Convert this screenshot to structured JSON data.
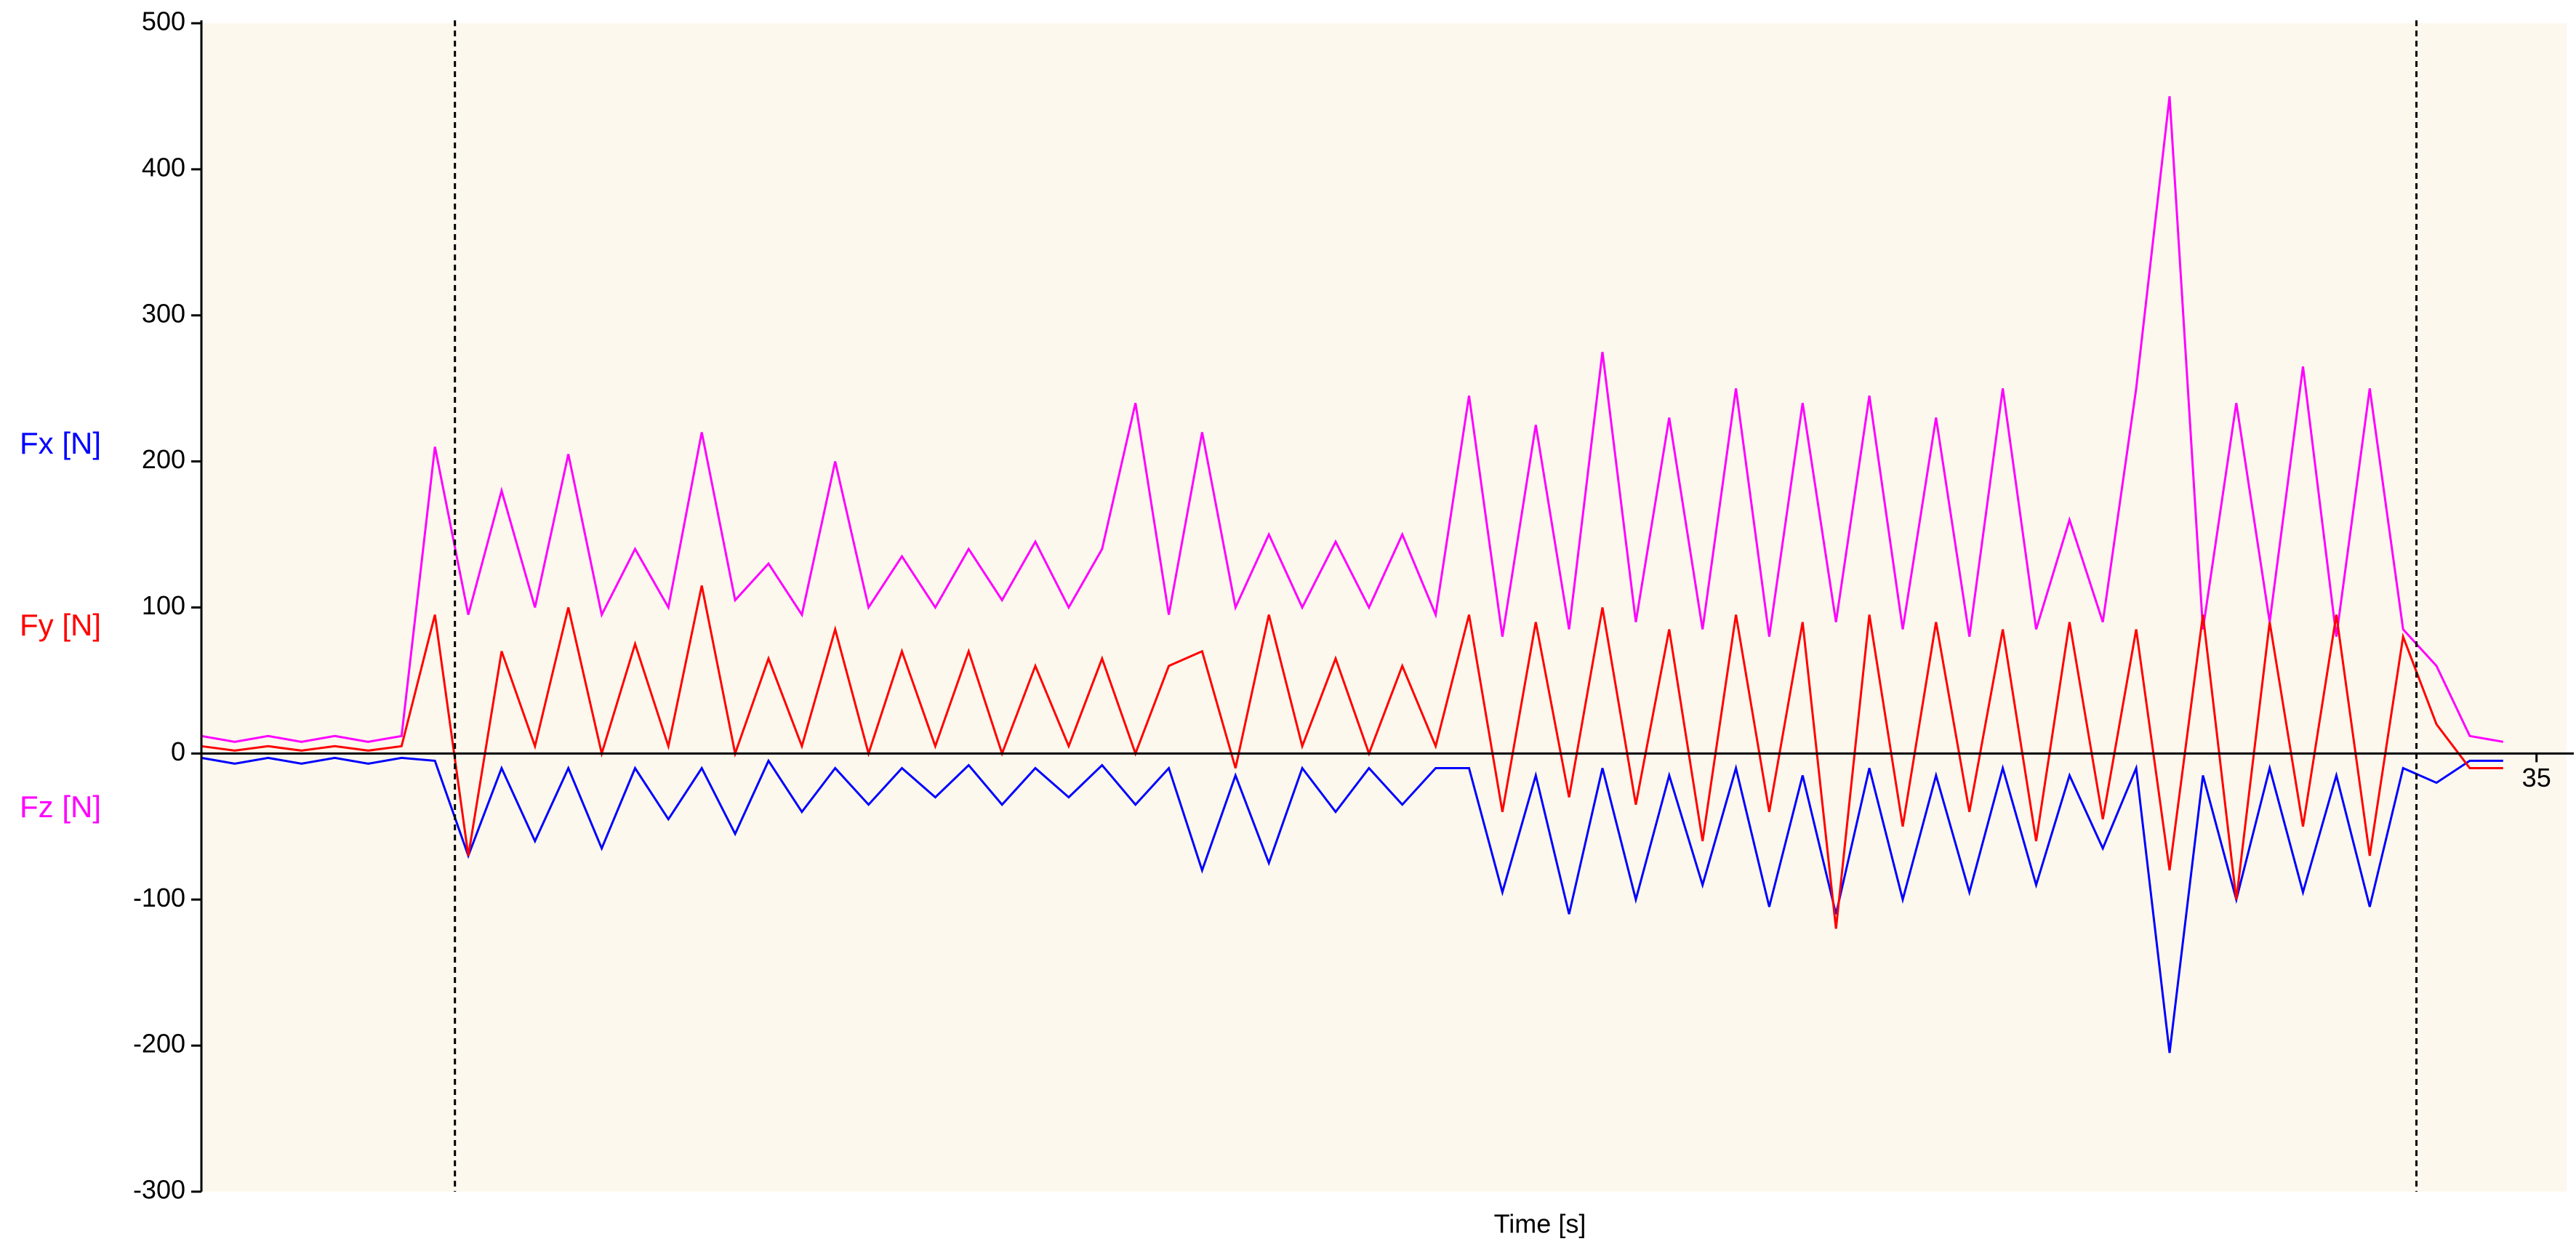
{
  "chart_data": {
    "type": "line",
    "x_label": "Time [s]",
    "x": [
      0,
      0.5,
      1,
      1.5,
      2,
      2.5,
      3,
      3.5,
      4,
      4.5,
      5,
      5.5,
      6,
      6.5,
      7,
      7.5,
      8,
      8.5,
      9,
      9.5,
      10,
      10.5,
      11,
      11.5,
      12,
      12.5,
      13,
      13.5,
      14,
      14.5,
      15,
      15.5,
      16,
      16.5,
      17,
      17.5,
      18,
      18.5,
      19,
      19.5,
      20,
      20.5,
      21,
      21.5,
      22,
      22.5,
      23,
      23.5,
      24,
      24.5,
      25,
      25.5,
      26,
      26.5,
      27,
      27.5,
      28,
      28.5,
      29,
      29.5,
      30,
      30.5,
      31,
      31.5,
      32,
      32.5,
      33,
      33.5,
      34,
      34.5
    ],
    "series": [
      {
        "name": "Fx [N]",
        "color": "#0000ff",
        "values": [
          -3,
          -7,
          -3,
          -7,
          -3,
          -7,
          -3,
          -5,
          -70,
          -10,
          -60,
          -10,
          -65,
          -10,
          -45,
          -10,
          -55,
          -5,
          -40,
          -10,
          -35,
          -10,
          -30,
          -8,
          -35,
          -10,
          -30,
          -8,
          -35,
          -10,
          -80,
          -15,
          -75,
          -10,
          -40,
          -10,
          -35,
          -10,
          -10,
          -95,
          -15,
          -110,
          -10,
          -100,
          -15,
          -90,
          -10,
          -105,
          -15,
          -110,
          -10,
          -100,
          -15,
          -95,
          -10,
          -90,
          -15,
          -65,
          -10,
          -205,
          -15,
          -100,
          -10,
          -95,
          -15,
          -105,
          -10,
          -20,
          -5,
          -5
        ]
      },
      {
        "name": "Fy [N]",
        "color": "#ff0000",
        "values": [
          5,
          2,
          5,
          2,
          5,
          2,
          5,
          95,
          -70,
          70,
          5,
          100,
          0,
          75,
          5,
          115,
          0,
          65,
          5,
          85,
          0,
          70,
          5,
          70,
          0,
          60,
          5,
          65,
          0,
          60,
          70,
          -10,
          95,
          5,
          65,
          0,
          60,
          5,
          95,
          -40,
          90,
          -30,
          100,
          -35,
          85,
          -60,
          95,
          -40,
          90,
          -120,
          95,
          -50,
          90,
          -40,
          85,
          -60,
          90,
          -45,
          85,
          -80,
          95,
          -100,
          90,
          -50,
          95,
          -70,
          80,
          20,
          -10,
          -10
        ]
      },
      {
        "name": "Fz [N]",
        "color": "#ff00ff",
        "values": [
          12,
          8,
          12,
          8,
          12,
          8,
          12,
          210,
          95,
          180,
          100,
          205,
          95,
          140,
          100,
          220,
          105,
          130,
          95,
          200,
          100,
          135,
          100,
          140,
          105,
          145,
          100,
          140,
          240,
          95,
          220,
          100,
          150,
          100,
          145,
          100,
          150,
          95,
          245,
          80,
          225,
          85,
          275,
          90,
          230,
          85,
          250,
          80,
          240,
          90,
          245,
          85,
          230,
          80,
          250,
          85,
          160,
          90,
          250,
          450,
          85,
          240,
          90,
          265,
          80,
          250,
          85,
          60,
          12,
          8
        ]
      }
    ],
    "xlim": [
      0,
      35.45
    ],
    "xticks": [
      35
    ],
    "ylim": [
      -300,
      500
    ],
    "yticks": [
      -300,
      -200,
      -100,
      0,
      100,
      200,
      300,
      400,
      500
    ],
    "markers": [
      3.8,
      33.2
    ]
  }
}
